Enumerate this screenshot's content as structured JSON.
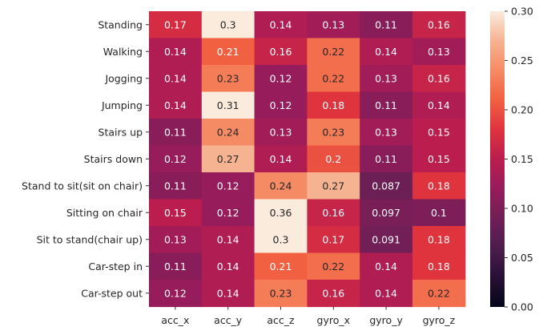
{
  "chart_data": {
    "type": "heatmap",
    "title": "",
    "xlabel": "",
    "ylabel": "",
    "columns": [
      "acc_x",
      "acc_y",
      "acc_z",
      "gyro_x",
      "gyro_y",
      "gyro_z"
    ],
    "rows": [
      "Standing",
      "Walking",
      "Jogging",
      "Jumping",
      "Stairs up",
      "Stairs down",
      "Stand to sit(sit on chair)",
      "Sitting on chair",
      "Sit to stand(chair up)",
      "Car-step in",
      "Car-step out"
    ],
    "values": [
      [
        0.17,
        0.3,
        0.14,
        0.13,
        0.11,
        0.16
      ],
      [
        0.14,
        0.21,
        0.16,
        0.22,
        0.14,
        0.13
      ],
      [
        0.14,
        0.23,
        0.12,
        0.22,
        0.13,
        0.16
      ],
      [
        0.14,
        0.31,
        0.12,
        0.18,
        0.11,
        0.14
      ],
      [
        0.11,
        0.24,
        0.13,
        0.23,
        0.13,
        0.15
      ],
      [
        0.12,
        0.27,
        0.14,
        0.2,
        0.11,
        0.15
      ],
      [
        0.11,
        0.12,
        0.24,
        0.27,
        0.087,
        0.18
      ],
      [
        0.15,
        0.12,
        0.36,
        0.16,
        0.097,
        0.1
      ],
      [
        0.13,
        0.14,
        0.3,
        0.17,
        0.091,
        0.18
      ],
      [
        0.11,
        0.14,
        0.21,
        0.22,
        0.14,
        0.18
      ],
      [
        0.12,
        0.14,
        0.23,
        0.16,
        0.14,
        0.22
      ]
    ],
    "colorbar": {
      "range": [
        0.0,
        0.3
      ],
      "ticks": [
        0.0,
        0.05,
        0.1,
        0.15,
        0.2,
        0.25,
        0.3
      ],
      "tick_labels": [
        "0.00",
        "0.05",
        "0.10",
        "0.15",
        "0.20",
        "0.25",
        "0.30"
      ],
      "colormap": "rocket"
    }
  }
}
